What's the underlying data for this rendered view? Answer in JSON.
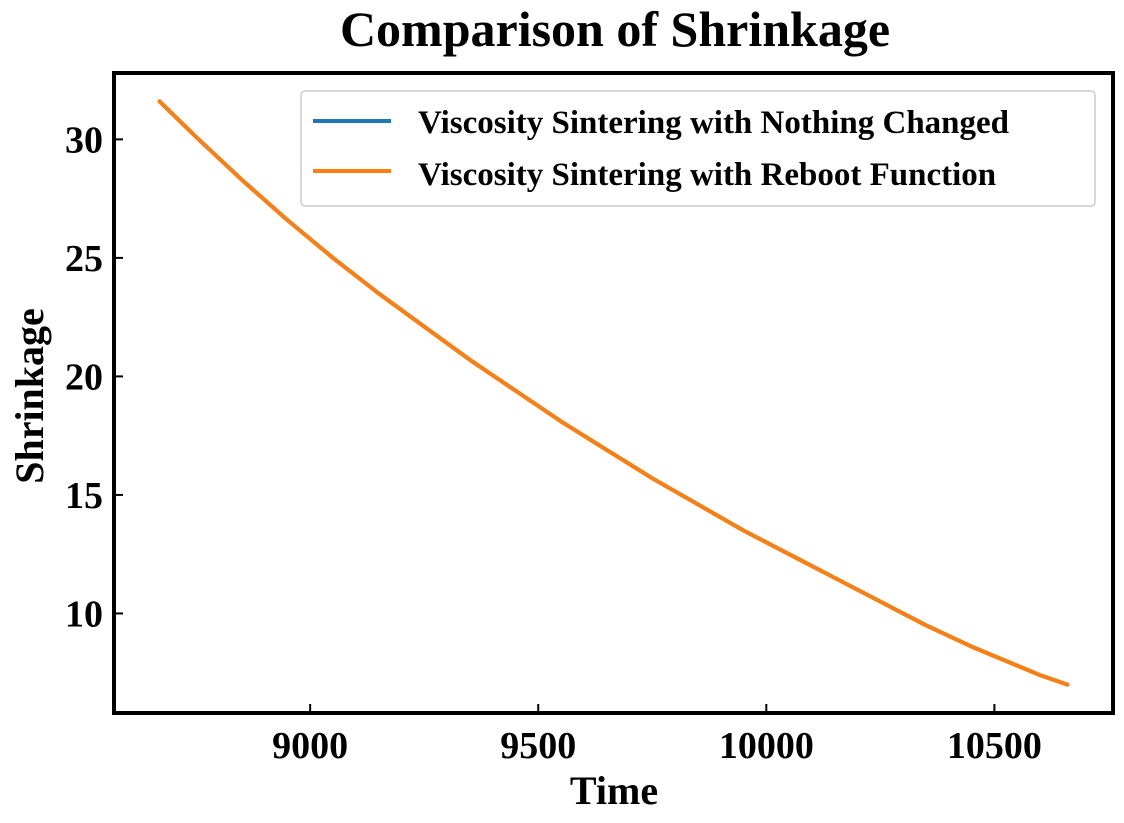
{
  "chart_data": {
    "type": "line",
    "title": "Comparison of Shrinkage",
    "xlabel": "Time",
    "ylabel": "Shrinkage",
    "xlim": [
      8570,
      10760
    ],
    "ylim": [
      5.8,
      32.8
    ],
    "xticks": [
      9000,
      9500,
      10000,
      10500
    ],
    "yticks": [
      10,
      15,
      20,
      25,
      30
    ],
    "grid": false,
    "legend_position": "top-right",
    "x": [
      8670,
      8750,
      8850,
      8950,
      9050,
      9150,
      9250,
      9350,
      9450,
      9550,
      9650,
      9750,
      9850,
      9950,
      10050,
      10150,
      10250,
      10350,
      10450,
      10500,
      10550,
      10600,
      10660
    ],
    "series": [
      {
        "name": "Viscosity Sintering with Nothing Changed",
        "color": "#1f77b4",
        "values": [
          31.6,
          30.1,
          28.3,
          26.6,
          25.0,
          23.5,
          22.1,
          20.7,
          19.4,
          18.1,
          16.9,
          15.7,
          14.6,
          13.5,
          12.5,
          11.5,
          10.5,
          9.5,
          8.6,
          8.2,
          7.8,
          7.4,
          7.0
        ]
      },
      {
        "name": "Viscosity Sintering with Reboot Function",
        "color": "#ff7f0e",
        "values": [
          31.6,
          30.1,
          28.3,
          26.6,
          25.0,
          23.5,
          22.1,
          20.7,
          19.4,
          18.1,
          16.9,
          15.7,
          14.6,
          13.5,
          12.5,
          11.5,
          10.5,
          9.5,
          8.6,
          8.2,
          7.8,
          7.4,
          7.0
        ]
      }
    ]
  }
}
